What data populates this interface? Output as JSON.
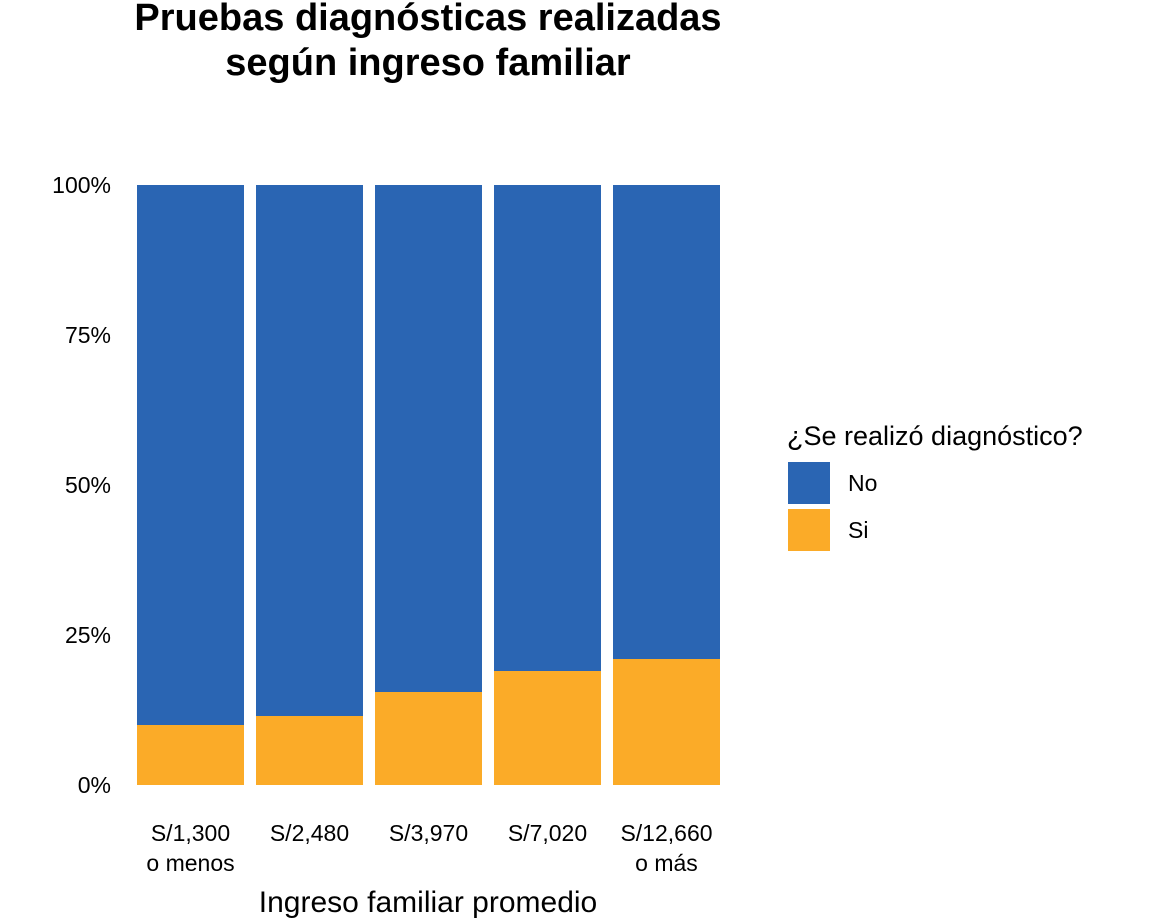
{
  "chart_data": {
    "type": "bar",
    "stacked": true,
    "normalized": true,
    "title": [
      "Pruebas diagnósticas realizadas",
      "según ingreso familiar"
    ],
    "xlabel": "Ingreso familiar promedio",
    "ylabel": "",
    "ylim": [
      0,
      100
    ],
    "yticks": [
      "0%",
      "25%",
      "50%",
      "75%",
      "100%"
    ],
    "categories": [
      [
        "S/1,300",
        "o menos"
      ],
      [
        "S/2,480"
      ],
      [
        "S/3,970"
      ],
      [
        "S/7,020"
      ],
      [
        "S/12,660",
        "o más"
      ]
    ],
    "series": [
      {
        "name": "Si",
        "color": "#FBAB28",
        "values": [
          10,
          11.5,
          15.5,
          19,
          21
        ]
      },
      {
        "name": "No",
        "color": "#2A65B3",
        "values": [
          90,
          88.5,
          84.5,
          81,
          79
        ]
      }
    ],
    "legend": {
      "title": "¿Se realizó diagnóstico?",
      "position": "right",
      "entries": [
        {
          "label": "No",
          "color": "#2A65B3"
        },
        {
          "label": "Si",
          "color": "#FBAB28"
        }
      ]
    },
    "grid": false
  }
}
